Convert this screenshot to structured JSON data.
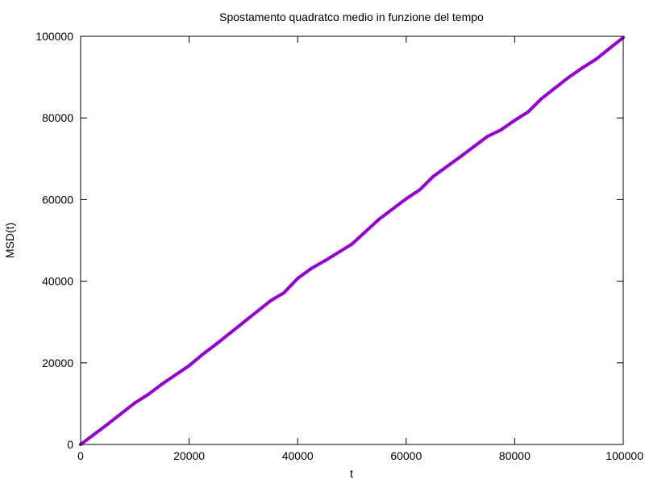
{
  "chart_data": {
    "type": "line",
    "title": "Spostamento quadratco medio in funzione del tempo",
    "xlabel": "t",
    "ylabel": "MSD(t)",
    "xlim": [
      0,
      100000
    ],
    "ylim": [
      0,
      100000
    ],
    "xticks": [
      0,
      20000,
      40000,
      60000,
      80000,
      100000
    ],
    "yticks": [
      0,
      20000,
      40000,
      60000,
      80000,
      100000
    ],
    "xtick_labels": [
      "0",
      "20000",
      "40000",
      "60000",
      "80000",
      "100000"
    ],
    "ytick_labels": [
      "0",
      "20000",
      "40000",
      "60000",
      "80000",
      "100000"
    ],
    "grid": false,
    "series": [
      {
        "color": "#9400d3",
        "x": [
          0,
          5000,
          10000,
          12500,
          15000,
          20000,
          22500,
          25000,
          30000,
          35000,
          37500,
          40000,
          42500,
          45000,
          50000,
          55000,
          60000,
          62500,
          65000,
          70000,
          72500,
          75000,
          77500,
          80000,
          82500,
          85000,
          90000,
          92500,
          95000,
          100000
        ],
        "y": [
          0,
          5000,
          10200,
          12300,
          14800,
          19300,
          22100,
          24600,
          29900,
          35200,
          37200,
          40700,
          43100,
          45000,
          49100,
          55200,
          60200,
          62400,
          65700,
          70500,
          73000,
          75500,
          77100,
          79400,
          81500,
          84800,
          90000,
          92300,
          94400,
          99700
        ]
      }
    ]
  }
}
